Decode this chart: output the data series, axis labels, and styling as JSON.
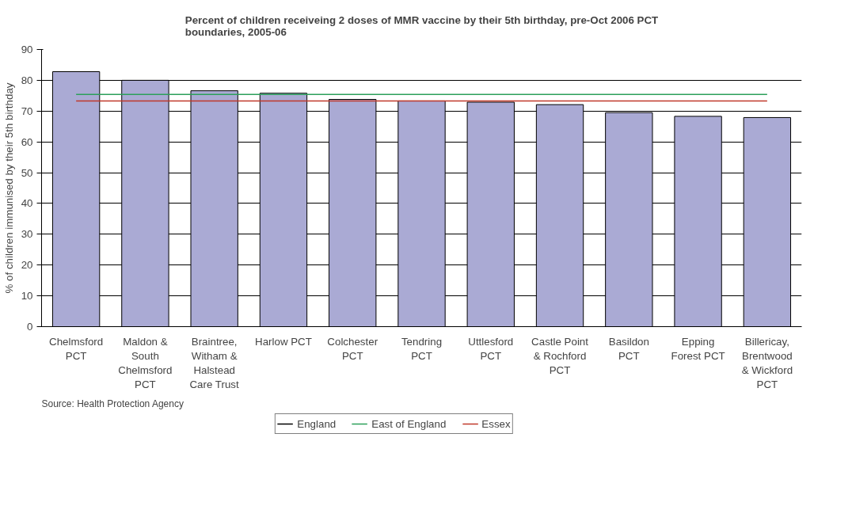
{
  "chart_data": {
    "type": "bar",
    "title": "Percent of children receiveing 2 doses of MMR vaccine by their 5th birthday, pre-Oct 2006 PCT\nboundaries, 2005-06",
    "ylabel": "% of children immunised by their 5th birthday",
    "categories": [
      "Chelmsford\nPCT",
      "Maldon &\nSouth\nChelmsford\nPCT",
      "Braintree,\nWitham &\nHalstead\nCare Trust",
      "Harlow PCT",
      "Colchester\nPCT",
      "Tendring\nPCT",
      "Uttlesford\nPCT",
      "Castle Point\n& Rochford\nPCT",
      "Basildon\nPCT",
      "Epping\nForest PCT",
      "Billericay,\nBrentwood\n& Wickford\nPCT"
    ],
    "series": [
      {
        "color": "#aaaad4",
        "values": [
          82.8,
          80,
          76.6,
          75.8,
          73.8,
          73.3,
          72.9,
          72.1,
          69.5,
          68.3,
          67.9
        ]
      },
      {
        "type": "line",
        "name": "England",
        "color": "#000000",
        "values": [
          null,
          null,
          null,
          null,
          null,
          null,
          null,
          null,
          null,
          null,
          null
        ]
      },
      {
        "type": "line",
        "name": "East of England",
        "color": "#2ca05a",
        "values": [
          75.4,
          75.4,
          75.4,
          75.4,
          75.4,
          75.4,
          75.4,
          75.4,
          75.4,
          75.4,
          75.4
        ]
      },
      {
        "type": "line",
        "name": "Essex",
        "color": "#c0392b",
        "values": [
          73.3,
          73.3,
          73.3,
          73.3,
          73.3,
          73.3,
          73.3,
          73.3,
          73.3,
          73.3,
          73.3
        ]
      }
    ],
    "ylim": [
      0,
      90
    ],
    "yticks": [
      0,
      10,
      20,
      30,
      40,
      50,
      60,
      70,
      80,
      90
    ],
    "grid": "y",
    "legend": "bottom",
    "annotations": [
      "Source: Health Protection Agency"
    ]
  }
}
